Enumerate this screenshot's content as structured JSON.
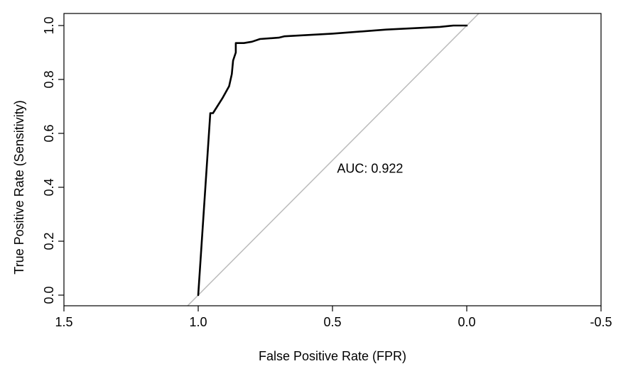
{
  "chart_data": {
    "type": "line",
    "title": "",
    "xlabel": "False Positive Rate (FPR)",
    "ylabel": "True Positive Rate (Sensitivity)",
    "xlim": [
      1.5,
      -0.5
    ],
    "ylim": [
      0.0,
      1.0
    ],
    "x_reversed": true,
    "grid": false,
    "legend": "none",
    "x_ticks": [
      1.5,
      1.0,
      0.5,
      0.0,
      -0.5
    ],
    "x_tick_labels": [
      "1.5",
      "1.0",
      "0.5",
      "0.0",
      "-0.5"
    ],
    "y_ticks": [
      0.0,
      0.2,
      0.4,
      0.6,
      0.8,
      1.0
    ],
    "y_tick_labels": [
      "0.0",
      "0.2",
      "0.4",
      "0.6",
      "0.8",
      "1.0"
    ],
    "series": [
      {
        "color": "#000000",
        "x": [
          1.0,
          0.955,
          0.95,
          0.945,
          0.91,
          0.885,
          0.875,
          0.87,
          0.86,
          0.86,
          0.83,
          0.8,
          0.77,
          0.7,
          0.68,
          0.5,
          0.3,
          0.1,
          0.05,
          0.0
        ],
        "y": [
          0.0,
          0.675,
          0.675,
          0.675,
          0.73,
          0.775,
          0.82,
          0.87,
          0.9,
          0.935,
          0.935,
          0.94,
          0.95,
          0.955,
          0.96,
          0.97,
          0.985,
          0.995,
          1.0,
          1.0
        ]
      },
      {
        "color": "#bbbbbb",
        "x": [
          1.05,
          -0.05
        ],
        "y": [
          -0.05,
          1.05
        ]
      }
    ],
    "annotations": [
      {
        "text": "AUC: 0.922",
        "x": 0.36,
        "y": 0.47
      }
    ]
  }
}
